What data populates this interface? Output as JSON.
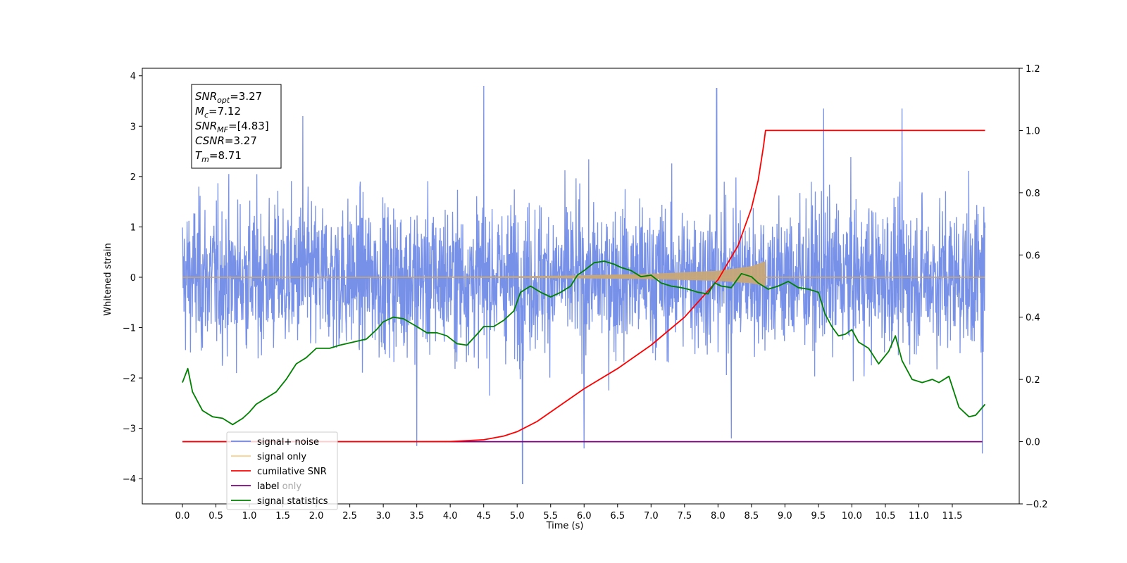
{
  "chart_data": {
    "type": "line",
    "xlabel": "Time (s)",
    "ylabel": "Whitened strain",
    "xlim": [
      -0.6,
      12.5
    ],
    "ylim_left": [
      -4.5,
      4.15
    ],
    "ylim_right": [
      -0.2,
      1.2
    ],
    "x_ticks": [
      "0.0",
      "0.5",
      "1.0",
      "1.5",
      "2.0",
      "2.5",
      "3.0",
      "3.5",
      "4.0",
      "4.5",
      "5.0",
      "5.5",
      "6.0",
      "6.5",
      "7.0",
      "7.5",
      "8.0",
      "8.5",
      "9.0",
      "9.5",
      "10.0",
      "10.5",
      "11.0",
      "11.5"
    ],
    "y_ticks_left": [
      "−4",
      "−3",
      "−2",
      "−1",
      "0",
      "1",
      "2",
      "3",
      "4"
    ],
    "y_ticks_right": [
      "−0.2",
      "0.0",
      "0.2",
      "0.4",
      "0.6",
      "0.8",
      "1.0",
      "1.2"
    ],
    "legend_position": "lower-left",
    "colors": {
      "signal_noise": "#6b87e6",
      "signal_only": "#f5b042",
      "signal_only_fill": "#c8a878",
      "cumulative_snr": "#ff0000",
      "label": "#800080",
      "signal_statistics": "#008000"
    },
    "signal_noise": {
      "x_range": [
        0.0,
        11.99
      ],
      "typical_range": [
        -2.5,
        2.5
      ],
      "max_peaks": [
        [
          4.5,
          3.8
        ],
        [
          7.98,
          3.75
        ],
        [
          1.8,
          3.2
        ],
        [
          9.58,
          3.35
        ],
        [
          10.75,
          3.35
        ],
        [
          3.5,
          -3.35
        ],
        [
          5.08,
          -4.1
        ],
        [
          6.0,
          -3.4
        ],
        [
          8.2,
          -3.2
        ],
        [
          11.95,
          -3.5
        ]
      ]
    },
    "signal_only": {
      "x_range": [
        0.0,
        11.99
      ],
      "chirp_end": 8.71,
      "envelope": [
        [
          0.0,
          0.0
        ],
        [
          3.0,
          0.005
        ],
        [
          5.0,
          0.02
        ],
        [
          6.0,
          0.04
        ],
        [
          7.0,
          0.07
        ],
        [
          8.0,
          0.13
        ],
        [
          8.5,
          0.22
        ],
        [
          8.71,
          0.32
        ],
        [
          8.72,
          0.0
        ],
        [
          11.99,
          0.0
        ]
      ],
      "centre": 0.0
    },
    "cumulative_snr": {
      "points": [
        [
          0.0,
          0.0
        ],
        [
          3.5,
          0.0
        ],
        [
          4.0,
          0.0005
        ],
        [
          4.5,
          0.006
        ],
        [
          4.8,
          0.018
        ],
        [
          5.0,
          0.032
        ],
        [
          5.3,
          0.065
        ],
        [
          5.6,
          0.11
        ],
        [
          6.0,
          0.17
        ],
        [
          6.5,
          0.235
        ],
        [
          7.0,
          0.31
        ],
        [
          7.5,
          0.4
        ],
        [
          8.0,
          0.52
        ],
        [
          8.3,
          0.63
        ],
        [
          8.5,
          0.75
        ],
        [
          8.6,
          0.84
        ],
        [
          8.68,
          0.95
        ],
        [
          8.71,
          1.0
        ],
        [
          11.99,
          1.0
        ]
      ]
    },
    "label_line": {
      "points": [
        [
          0.0,
          0.0
        ],
        [
          11.95,
          0.0
        ]
      ]
    },
    "signal_statistics": {
      "points": [
        [
          0.0,
          0.19
        ],
        [
          0.08,
          0.235
        ],
        [
          0.15,
          0.16
        ],
        [
          0.3,
          0.1
        ],
        [
          0.45,
          0.08
        ],
        [
          0.6,
          0.075
        ],
        [
          0.75,
          0.055
        ],
        [
          0.9,
          0.075
        ],
        [
          1.0,
          0.095
        ],
        [
          1.1,
          0.12
        ],
        [
          1.25,
          0.14
        ],
        [
          1.4,
          0.16
        ],
        [
          1.55,
          0.2
        ],
        [
          1.7,
          0.25
        ],
        [
          1.85,
          0.27
        ],
        [
          2.0,
          0.3
        ],
        [
          2.2,
          0.3
        ],
        [
          2.35,
          0.31
        ],
        [
          2.55,
          0.32
        ],
        [
          2.75,
          0.33
        ],
        [
          2.9,
          0.36
        ],
        [
          3.0,
          0.385
        ],
        [
          3.15,
          0.4
        ],
        [
          3.3,
          0.395
        ],
        [
          3.5,
          0.37
        ],
        [
          3.65,
          0.35
        ],
        [
          3.8,
          0.35
        ],
        [
          3.95,
          0.34
        ],
        [
          4.1,
          0.315
        ],
        [
          4.25,
          0.31
        ],
        [
          4.4,
          0.345
        ],
        [
          4.5,
          0.37
        ],
        [
          4.65,
          0.37
        ],
        [
          4.8,
          0.39
        ],
        [
          4.95,
          0.42
        ],
        [
          5.05,
          0.48
        ],
        [
          5.2,
          0.5
        ],
        [
          5.35,
          0.48
        ],
        [
          5.5,
          0.465
        ],
        [
          5.65,
          0.48
        ],
        [
          5.8,
          0.5
        ],
        [
          5.9,
          0.535
        ],
        [
          6.0,
          0.55
        ],
        [
          6.15,
          0.575
        ],
        [
          6.3,
          0.58
        ],
        [
          6.45,
          0.57
        ],
        [
          6.55,
          0.56
        ],
        [
          6.7,
          0.55
        ],
        [
          6.85,
          0.53
        ],
        [
          7.0,
          0.535
        ],
        [
          7.15,
          0.51
        ],
        [
          7.3,
          0.5
        ],
        [
          7.45,
          0.495
        ],
        [
          7.55,
          0.49
        ],
        [
          7.7,
          0.48
        ],
        [
          7.85,
          0.475
        ],
        [
          7.95,
          0.51
        ],
        [
          8.05,
          0.5
        ],
        [
          8.2,
          0.495
        ],
        [
          8.35,
          0.54
        ],
        [
          8.5,
          0.53
        ],
        [
          8.6,
          0.51
        ],
        [
          8.75,
          0.49
        ],
        [
          8.9,
          0.5
        ],
        [
          9.05,
          0.515
        ],
        [
          9.2,
          0.495
        ],
        [
          9.35,
          0.49
        ],
        [
          9.5,
          0.48
        ],
        [
          9.6,
          0.41
        ],
        [
          9.7,
          0.37
        ],
        [
          9.8,
          0.34
        ],
        [
          9.9,
          0.345
        ],
        [
          10.0,
          0.36
        ],
        [
          10.1,
          0.32
        ],
        [
          10.25,
          0.3
        ],
        [
          10.4,
          0.25
        ],
        [
          10.55,
          0.29
        ],
        [
          10.65,
          0.34
        ],
        [
          10.75,
          0.26
        ],
        [
          10.9,
          0.2
        ],
        [
          11.05,
          0.19
        ],
        [
          11.2,
          0.2
        ],
        [
          11.3,
          0.19
        ],
        [
          11.45,
          0.21
        ],
        [
          11.6,
          0.11
        ],
        [
          11.75,
          0.08
        ],
        [
          11.85,
          0.085
        ],
        [
          11.99,
          0.12
        ]
      ]
    },
    "info_box": {
      "lines": [
        {
          "base": "SNR",
          "sub": "opt",
          "value": "=3.27"
        },
        {
          "base": "M",
          "sub": "c",
          "value": "=7.12"
        },
        {
          "base": "SNR",
          "sub": "MF",
          "value": "=[4.83]"
        },
        {
          "base": "CSNR",
          "sub": "",
          "value": "=3.27"
        },
        {
          "base": "T",
          "sub": "m",
          "value": "=8.71"
        }
      ]
    },
    "legend": [
      {
        "label": "signal+ noise",
        "key": "signal_noise"
      },
      {
        "label": "signal only",
        "key": "signal_only"
      },
      {
        "label": "cumilative SNR",
        "key": "cumulative_snr"
      },
      {
        "label": "label",
        "key": "label"
      },
      {
        "label": "signal statistics",
        "key": "signal_statistics"
      }
    ],
    "legend_hidden_labels": [
      "label only"
    ]
  }
}
